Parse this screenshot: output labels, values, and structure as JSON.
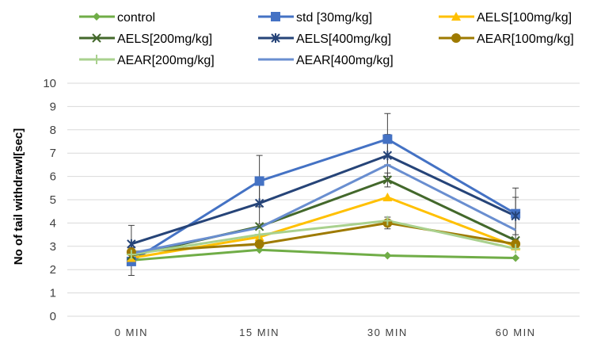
{
  "chart_data": {
    "type": "line",
    "title": "",
    "xlabel": "",
    "ylabel": "No of tail withdrawl[sec]",
    "ylim": [
      0,
      10
    ],
    "yticks": [
      "0",
      "1",
      "2",
      "3",
      "4",
      "5",
      "6",
      "7",
      "8",
      "9",
      "10"
    ],
    "categories": [
      "0 MIN",
      "15 MIN",
      "30 MIN",
      "60 MIN"
    ],
    "grid": true,
    "legend_position": "top",
    "series": [
      {
        "name": "control",
        "color": "#70ad47",
        "marker": "diamond",
        "values": [
          2.4,
          2.85,
          2.6,
          2.5
        ],
        "errors": [
          0,
          0,
          0,
          0
        ]
      },
      {
        "name": "std [30mg/kg]",
        "color": "#4472c4",
        "marker": "square",
        "values": [
          2.35,
          5.8,
          7.6,
          4.4
        ],
        "errors": [
          0.6,
          1.1,
          1.1,
          1.1
        ]
      },
      {
        "name": "AELS[100mg/kg]",
        "color": "#ffc000",
        "marker": "triangle",
        "values": [
          2.5,
          3.4,
          5.1,
          3.0
        ],
        "errors": [
          0,
          0,
          0,
          0
        ]
      },
      {
        "name": "AELS[200mg/kg]",
        "color": "#43682b",
        "marker": "x",
        "values": [
          2.6,
          3.85,
          5.85,
          3.25
        ],
        "errors": [
          0,
          0,
          0.3,
          0
        ]
      },
      {
        "name": "AELS[400mg/kg]",
        "color": "#264478",
        "marker": "star",
        "values": [
          3.1,
          4.85,
          6.9,
          4.3
        ],
        "errors": [
          0.8,
          0.9,
          0.9,
          0.8
        ]
      },
      {
        "name": "AEAR[100mg/kg]",
        "color": "#9e7a00",
        "marker": "circle",
        "values": [
          2.75,
          3.1,
          4.0,
          3.1
        ],
        "errors": [
          0,
          0,
          0.25,
          0
        ]
      },
      {
        "name": "AEAR[200mg/kg]",
        "color": "#a9d18e",
        "marker": "plus",
        "values": [
          2.65,
          3.5,
          4.1,
          2.9
        ],
        "errors": [
          0,
          0,
          0,
          0
        ]
      },
      {
        "name": "AEAR[400mg/kg]",
        "color": "#698ed0",
        "marker": "none",
        "values": [
          2.7,
          3.8,
          6.5,
          3.7
        ],
        "errors": [
          0,
          0,
          0,
          0
        ]
      }
    ]
  }
}
